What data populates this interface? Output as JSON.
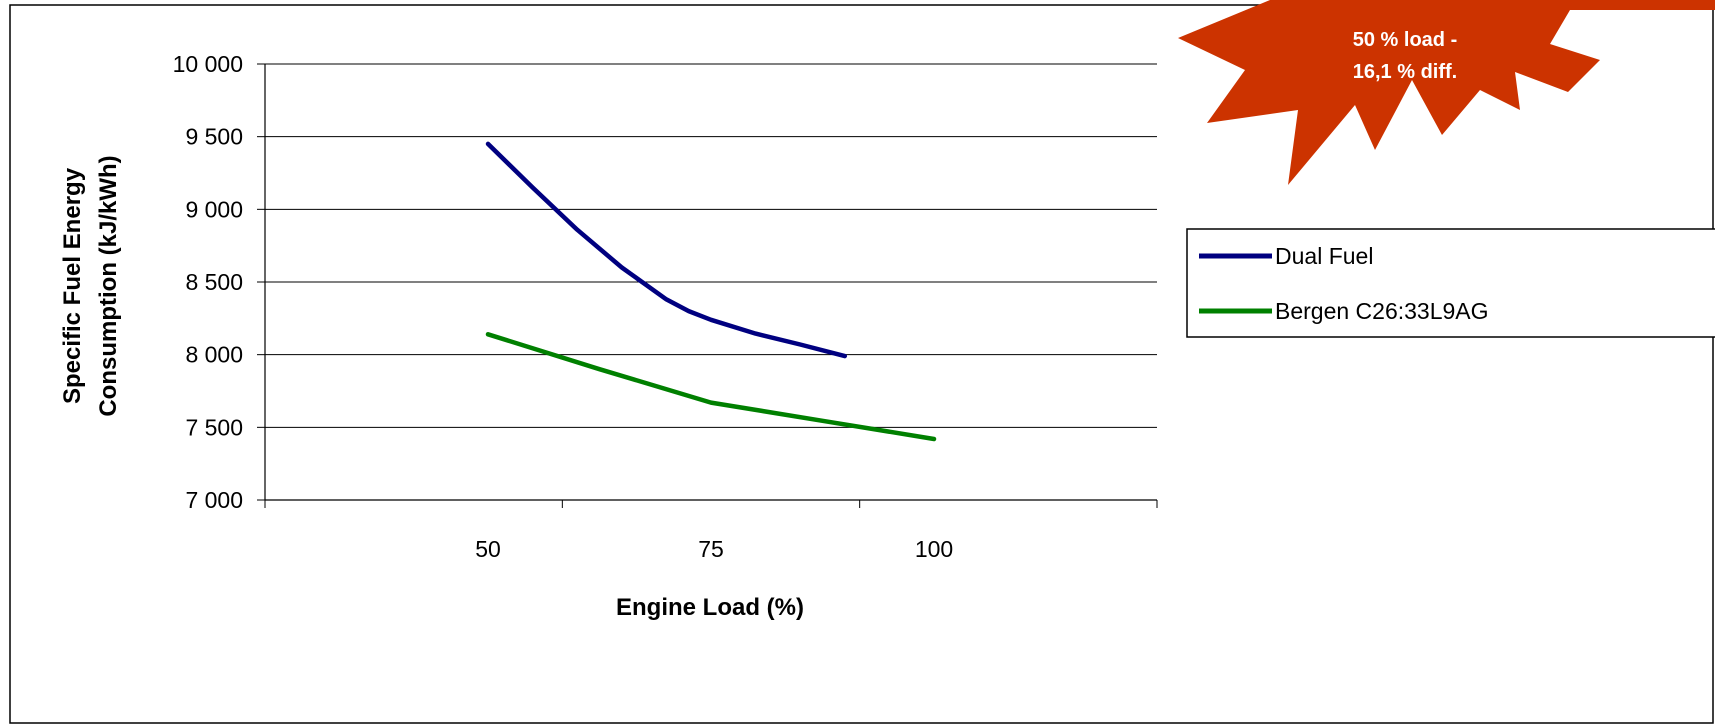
{
  "chart_data": {
    "type": "line",
    "xlabel": "Engine Load (%)",
    "ylabel_lines": [
      "Specific Fuel Energy",
      "Consumption (kJ/kWh)"
    ],
    "x_categories": [
      "50",
      "75",
      "100"
    ],
    "ylim": [
      7000,
      10000
    ],
    "y_ticks": [
      7000,
      7500,
      8000,
      8500,
      9000,
      9500,
      10000
    ],
    "y_tick_labels": [
      "7 000",
      "7 500",
      "8 000",
      "8 500",
      "9 000",
      "9 500",
      "10 000"
    ],
    "grid": "horizontal",
    "legend_position": "right",
    "series": [
      {
        "name": "Dual Fuel",
        "color": "#000080",
        "points": [
          [
            50,
            9450
          ],
          [
            55,
            9150
          ],
          [
            60,
            8860
          ],
          [
            65,
            8600
          ],
          [
            70,
            8380
          ],
          [
            72.5,
            8300
          ],
          [
            75,
            8240
          ],
          [
            80,
            8145
          ],
          [
            85,
            8070
          ],
          [
            90,
            7990
          ]
        ]
      },
      {
        "name": "Bergen C26:33L9AG",
        "color": "#008000",
        "points": [
          [
            50,
            8140
          ],
          [
            62.5,
            7900
          ],
          [
            75,
            7670
          ],
          [
            87.5,
            7545
          ],
          [
            100,
            7420
          ]
        ]
      }
    ]
  },
  "callout": {
    "lines": [
      "50 %  load -",
      "16,1 % diff."
    ],
    "color": "#cc3300"
  }
}
